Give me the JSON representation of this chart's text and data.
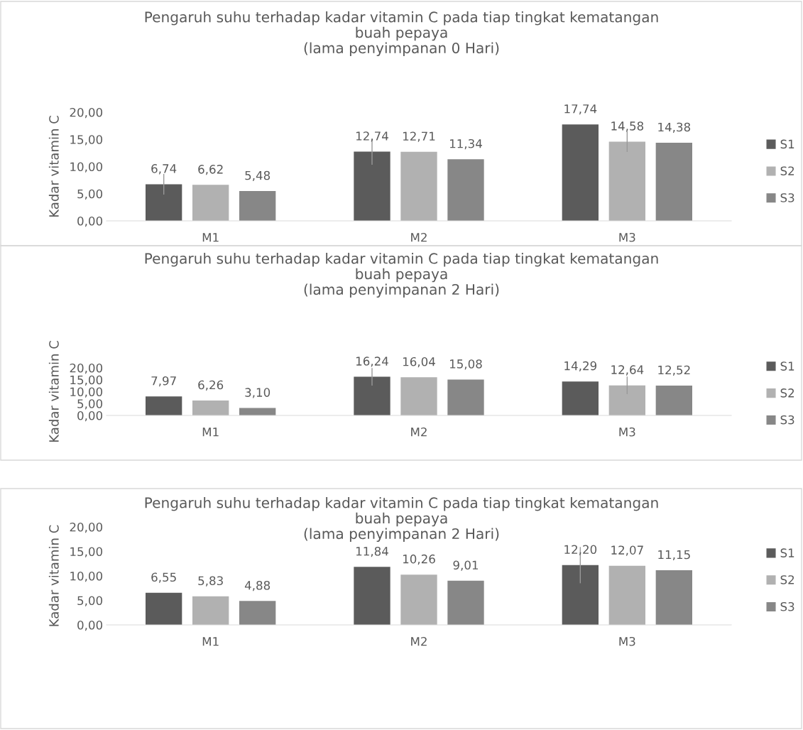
{
  "chart_data": [
    {
      "type": "bar",
      "title": "Pengaruh suhu terhadap kadar vitamin C pada tiap tingkat kematangan\nbuah pepaya\n(lama penyimpanan 0 Hari)",
      "ylabel": "Kadar vitamin C",
      "categories": [
        "M1",
        "M2",
        "M3"
      ],
      "ylim": [
        0,
        20
      ],
      "yticks": [
        {
          "value": 0,
          "label": "0,00"
        },
        {
          "value": 5,
          "label": "5,00"
        },
        {
          "value": 10,
          "label": "10,00"
        },
        {
          "value": 15,
          "label": "15,00"
        },
        {
          "value": 20,
          "label": "20,00"
        }
      ],
      "grid": false,
      "legend": "right",
      "series": [
        {
          "name": "S1",
          "color": "#5b5b5b",
          "values": [
            6.74,
            12.74,
            17.74
          ],
          "value_labels": [
            "6,74",
            "12,74",
            "17,74"
          ],
          "errors": [
            1.9,
            2.4,
            null
          ]
        },
        {
          "name": "S2",
          "color": "#b1b1b1",
          "values": [
            6.62,
            12.71,
            14.58
          ],
          "value_labels": [
            "6,62",
            "12,71",
            "14,58"
          ],
          "errors": [
            null,
            null,
            1.9
          ]
        },
        {
          "name": "S3",
          "color": "#878787",
          "values": [
            5.48,
            11.34,
            14.38
          ],
          "value_labels": [
            "5,48",
            "11,34",
            "14,38"
          ],
          "errors": [
            null,
            null,
            null
          ]
        }
      ]
    },
    {
      "type": "bar",
      "title": "Pengaruh suhu terhadap kadar vitamin C pada tiap tingkat kematangan\nbuah pepaya\n(lama penyimpanan 2 Hari)",
      "ylabel": "Kadar vitamin C",
      "categories": [
        "M1",
        "M2",
        "M3"
      ],
      "ylim": [
        0,
        20
      ],
      "yticks": [
        {
          "value": 0,
          "label": "0,00"
        },
        {
          "value": 5,
          "label": "5,00"
        },
        {
          "value": 10,
          "label": "10,00"
        },
        {
          "value": 15,
          "label": "15,00"
        },
        {
          "value": 20,
          "label": "20,00"
        }
      ],
      "grid": false,
      "legend": "right",
      "series": [
        {
          "name": "S1",
          "color": "#5b5b5b",
          "values": [
            7.97,
            16.24,
            14.29
          ],
          "value_labels": [
            "7,97",
            "16,24",
            "14,29"
          ],
          "errors": [
            null,
            3.7,
            null
          ]
        },
        {
          "name": "S2",
          "color": "#b1b1b1",
          "values": [
            6.26,
            16.04,
            12.64
          ],
          "value_labels": [
            "6,26",
            "16,04",
            "12,64"
          ],
          "errors": [
            null,
            null,
            3.7
          ]
        },
        {
          "name": "S3",
          "color": "#878787",
          "values": [
            3.1,
            15.08,
            12.52
          ],
          "value_labels": [
            "3,10",
            "15,08",
            "12,52"
          ],
          "errors": [
            null,
            null,
            null
          ]
        }
      ]
    },
    {
      "type": "bar",
      "title": "Pengaruh suhu terhadap kadar vitamin C pada tiap tingkat kematangan\nbuah pepaya\n(lama penyimpanan 2 Hari)",
      "ylabel": "Kadar vitamin C",
      "categories": [
        "M1",
        "M2",
        "M3"
      ],
      "ylim": [
        0,
        20
      ],
      "yticks": [
        {
          "value": 0,
          "label": "0,00"
        },
        {
          "value": 5,
          "label": "5,00"
        },
        {
          "value": 10,
          "label": "10,00"
        },
        {
          "value": 15,
          "label": "15,00"
        },
        {
          "value": 20,
          "label": "20,00"
        }
      ],
      "grid": false,
      "legend": "right",
      "series": [
        {
          "name": "S1",
          "color": "#5b5b5b",
          "values": [
            6.55,
            11.84,
            12.2
          ],
          "value_labels": [
            "6,55",
            "11,84",
            "12,20"
          ],
          "errors": [
            null,
            null,
            3.7
          ]
        },
        {
          "name": "S2",
          "color": "#b1b1b1",
          "values": [
            5.83,
            10.26,
            12.07
          ],
          "value_labels": [
            "5,83",
            "10,26",
            "12,07"
          ],
          "errors": [
            null,
            null,
            null
          ]
        },
        {
          "name": "S3",
          "color": "#878787",
          "values": [
            4.88,
            9.01,
            11.15
          ],
          "value_labels": [
            "4,88",
            "9,01",
            "11,15"
          ],
          "errors": [
            null,
            null,
            null
          ]
        }
      ]
    }
  ]
}
